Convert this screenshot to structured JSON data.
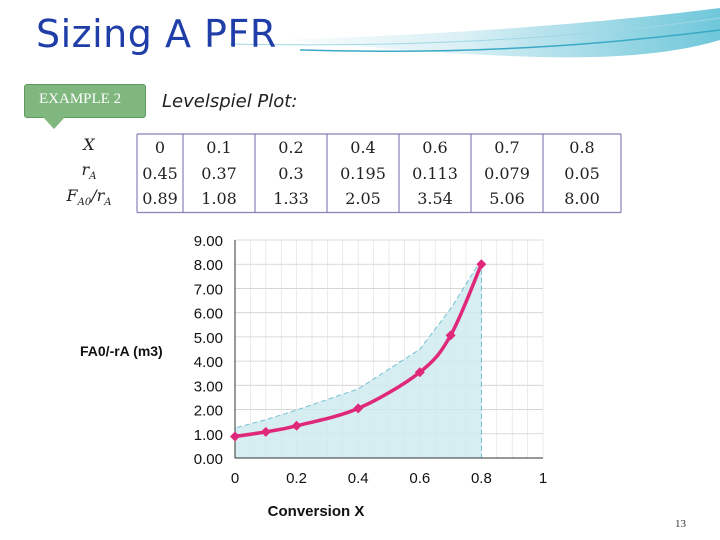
{
  "slide": {
    "title": "Sizing A PFR",
    "badge": "EXAMPLE 2",
    "subtitle": "Levelspiel Plot:",
    "slide_number": "13"
  },
  "table": {
    "row_labels": [
      "X",
      "r",
      "F",
      "/r"
    ],
    "subscripts": [
      "A",
      "A0",
      "A"
    ],
    "columns": [
      {
        "x": "0",
        "r": "0.45",
        "f": "0.89"
      },
      {
        "x": "0.1",
        "r": "0.37",
        "f": "1.08"
      },
      {
        "x": "0.2",
        "r": "0.3",
        "f": "1.33"
      },
      {
        "x": "0.4",
        "r": "0.195",
        "f": "2.05"
      },
      {
        "x": "0.6",
        "r": "0.113",
        "f": "3.54"
      },
      {
        "x": "0.7",
        "r": "0.079",
        "f": "5.06"
      },
      {
        "x": "0.8",
        "r": "0.05",
        "f": "8.00"
      }
    ]
  },
  "chart_data": {
    "type": "line",
    "title": "",
    "xlabel": "Conversion  X",
    "ylabel": "FA0/-rA (m3)",
    "xlim": [
      0,
      1
    ],
    "ylim": [
      0,
      9
    ],
    "x_ticks": [
      "0",
      "0.2",
      "0.4",
      "0.6",
      "0.8",
      "1"
    ],
    "x_tick_values": [
      0,
      0.2,
      0.4,
      0.6,
      0.8,
      1
    ],
    "y_ticks": [
      "0.00",
      "1.00",
      "2.00",
      "3.00",
      "4.00",
      "5.00",
      "6.00",
      "7.00",
      "8.00",
      "9.00"
    ],
    "grid": true,
    "series": [
      {
        "name": "FA0/-rA",
        "x": [
          0,
          0.1,
          0.2,
          0.4,
          0.6,
          0.7,
          0.8
        ],
        "values": [
          0.89,
          1.08,
          1.33,
          2.05,
          3.54,
          5.06,
          8.0
        ],
        "color": "#e0287a"
      }
    ],
    "fill_color": "#cfeaf0",
    "fill_stroke": "#5cb8cc"
  },
  "colors": {
    "title": "#1f3ea8",
    "badge": "#7fb77e",
    "table_border": "#8a7fb8"
  }
}
